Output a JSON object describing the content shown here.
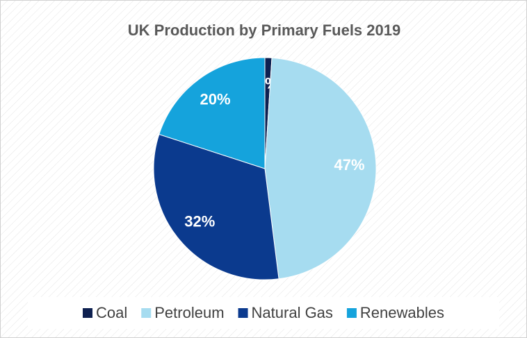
{
  "chart_data": {
    "type": "pie",
    "title": "UK Production by Primary Fuels 2019",
    "categories": [
      "Coal",
      "Petroleum",
      "Natural Gas",
      "Renewables"
    ],
    "values": [
      1,
      47,
      32,
      20
    ],
    "value_labels": [
      "1%",
      "47%",
      "32%",
      "20%"
    ],
    "colors": [
      "#0e2050",
      "#a6dcf0",
      "#0b3a8e",
      "#15a3dc"
    ],
    "legend": "bottom"
  }
}
